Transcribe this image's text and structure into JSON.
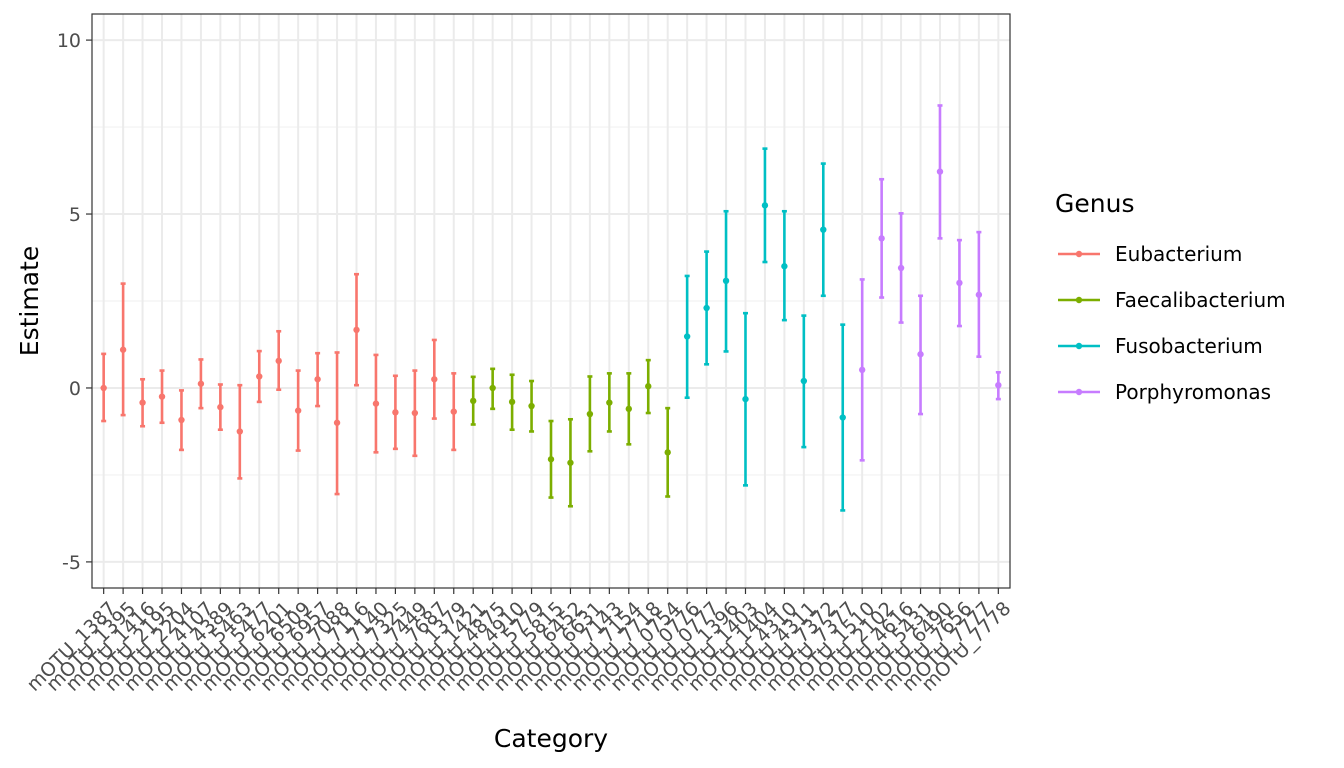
{
  "chart_data": {
    "type": "scatter",
    "subtype": "point-with-errorbars",
    "title": "",
    "xlabel": "Category",
    "ylabel": "Estimate",
    "ylim": [
      -5.75,
      10.75
    ],
    "yticks": [
      -5,
      0,
      5,
      10
    ],
    "grid": true,
    "legend": {
      "title": "Genus",
      "placement": "right"
    },
    "colors": {
      "Eubacterium": "#F8766D",
      "Faecalibacterium": "#7CAE00",
      "Fusobacterium": "#00BFC4",
      "Porphyromonas": "#C77CFF"
    },
    "genera": [
      "Eubacterium",
      "Faecalibacterium",
      "Fusobacterium",
      "Porphyromonas"
    ],
    "points": [
      {
        "category": "mOTU_1387",
        "genus": "Eubacterium",
        "estimate": 0.0,
        "lower": -0.95,
        "upper": 0.98
      },
      {
        "category": "mOTU_1395",
        "genus": "Eubacterium",
        "estimate": 1.1,
        "lower": -0.78,
        "upper": 3.0
      },
      {
        "category": "mOTU_1416",
        "genus": "Eubacterium",
        "estimate": -0.42,
        "lower": -1.1,
        "upper": 0.25
      },
      {
        "category": "mOTU_2195",
        "genus": "Eubacterium",
        "estimate": -0.25,
        "lower": -1.0,
        "upper": 0.5
      },
      {
        "category": "mOTU_2204",
        "genus": "Eubacterium",
        "estimate": -0.92,
        "lower": -1.78,
        "upper": -0.07
      },
      {
        "category": "mOTU_4107",
        "genus": "Eubacterium",
        "estimate": 0.12,
        "lower": -0.58,
        "upper": 0.82
      },
      {
        "category": "mOTU_4389",
        "genus": "Eubacterium",
        "estimate": -0.55,
        "lower": -1.2,
        "upper": 0.1
      },
      {
        "category": "mOTU_5463",
        "genus": "Eubacterium",
        "estimate": -1.25,
        "lower": -2.6,
        "upper": 0.08
      },
      {
        "category": "mOTU_5477",
        "genus": "Eubacterium",
        "estimate": 0.33,
        "lower": -0.4,
        "upper": 1.06
      },
      {
        "category": "mOTU_6201",
        "genus": "Eubacterium",
        "estimate": 0.78,
        "lower": -0.05,
        "upper": 1.63
      },
      {
        "category": "mOTU_6509",
        "genus": "Eubacterium",
        "estimate": -0.65,
        "lower": -1.8,
        "upper": 0.5
      },
      {
        "category": "mOTU_6957",
        "genus": "Eubacterium",
        "estimate": 0.25,
        "lower": -0.52,
        "upper": 1.0
      },
      {
        "category": "mOTU_7088",
        "genus": "Eubacterium",
        "estimate": -1.0,
        "lower": -3.05,
        "upper": 1.02
      },
      {
        "category": "mOTU_7116",
        "genus": "Eubacterium",
        "estimate": 1.67,
        "lower": 0.08,
        "upper": 3.27
      },
      {
        "category": "mOTU_7140",
        "genus": "Eubacterium",
        "estimate": -0.45,
        "lower": -1.85,
        "upper": 0.95
      },
      {
        "category": "mOTU_7325",
        "genus": "Eubacterium",
        "estimate": -0.7,
        "lower": -1.75,
        "upper": 0.35
      },
      {
        "category": "mOTU_7449",
        "genus": "Eubacterium",
        "estimate": -0.72,
        "lower": -1.95,
        "upper": 0.5
      },
      {
        "category": "mOTU_7687",
        "genus": "Eubacterium",
        "estimate": 0.25,
        "lower": -0.88,
        "upper": 1.38
      },
      {
        "category": "mOTU_1379",
        "genus": "Eubacterium",
        "estimate": -0.68,
        "lower": -1.78,
        "upper": 0.42
      },
      {
        "category": "mOTU_1421",
        "genus": "Faecalibacterium",
        "estimate": -0.37,
        "lower": -1.05,
        "upper": 0.32
      },
      {
        "category": "mOTU_4875",
        "genus": "Faecalibacterium",
        "estimate": 0.0,
        "lower": -0.6,
        "upper": 0.55
      },
      {
        "category": "mOTU_4910",
        "genus": "Faecalibacterium",
        "estimate": -0.4,
        "lower": -1.2,
        "upper": 0.38
      },
      {
        "category": "mOTU_5779",
        "genus": "Faecalibacterium",
        "estimate": -0.52,
        "lower": -1.25,
        "upper": 0.2
      },
      {
        "category": "mOTU_5815",
        "genus": "Faecalibacterium",
        "estimate": -2.05,
        "lower": -3.15,
        "upper": -0.95
      },
      {
        "category": "mOTU_6452",
        "genus": "Faecalibacterium",
        "estimate": -2.15,
        "lower": -3.4,
        "upper": -0.9
      },
      {
        "category": "mOTU_6631",
        "genus": "Faecalibacterium",
        "estimate": -0.75,
        "lower": -1.82,
        "upper": 0.33
      },
      {
        "category": "mOTU_7143",
        "genus": "Faecalibacterium",
        "estimate": -0.42,
        "lower": -1.25,
        "upper": 0.42
      },
      {
        "category": "mOTU_7154",
        "genus": "Faecalibacterium",
        "estimate": -0.6,
        "lower": -1.62,
        "upper": 0.42
      },
      {
        "category": "mOTU_7718",
        "genus": "Faecalibacterium",
        "estimate": 0.05,
        "lower": -0.72,
        "upper": 0.8
      },
      {
        "category": "mOTU_0754",
        "genus": "Faecalibacterium",
        "estimate": -1.85,
        "lower": -3.12,
        "upper": -0.58
      },
      {
        "category": "mOTU_0776",
        "genus": "Fusobacterium",
        "estimate": 1.48,
        "lower": -0.28,
        "upper": 3.22
      },
      {
        "category": "mOTU_0777",
        "genus": "Fusobacterium",
        "estimate": 2.3,
        "lower": 0.68,
        "upper": 3.92
      },
      {
        "category": "mOTU_1396",
        "genus": "Fusobacterium",
        "estimate": 3.08,
        "lower": 1.05,
        "upper": 5.08
      },
      {
        "category": "mOTU_1403",
        "genus": "Fusobacterium",
        "estimate": -0.32,
        "lower": -2.8,
        "upper": 2.15
      },
      {
        "category": "mOTU_1404",
        "genus": "Fusobacterium",
        "estimate": 5.25,
        "lower": 3.62,
        "upper": 6.88
      },
      {
        "category": "mOTU_4310",
        "genus": "Fusobacterium",
        "estimate": 3.5,
        "lower": 1.95,
        "upper": 5.08
      },
      {
        "category": "mOTU_4311",
        "genus": "Fusobacterium",
        "estimate": 0.2,
        "lower": -1.7,
        "upper": 2.08
      },
      {
        "category": "mOTU_7372",
        "genus": "Fusobacterium",
        "estimate": 4.55,
        "lower": 2.65,
        "upper": 6.45
      },
      {
        "category": "mOTU_7377",
        "genus": "Fusobacterium",
        "estimate": -0.85,
        "lower": -3.52,
        "upper": 1.82
      },
      {
        "category": "mOTU_1510",
        "genus": "Porphyromonas",
        "estimate": 0.52,
        "lower": -2.08,
        "upper": 3.12
      },
      {
        "category": "mOTU_2102",
        "genus": "Porphyromonas",
        "estimate": 4.3,
        "lower": 2.6,
        "upper": 6.0
      },
      {
        "category": "mOTU_4616",
        "genus": "Porphyromonas",
        "estimate": 3.45,
        "lower": 1.88,
        "upper": 5.02
      },
      {
        "category": "mOTU_5431",
        "genus": "Porphyromonas",
        "estimate": 0.97,
        "lower": -0.75,
        "upper": 2.65
      },
      {
        "category": "mOTU_6490",
        "genus": "Porphyromonas",
        "estimate": 6.22,
        "lower": 4.3,
        "upper": 8.12
      },
      {
        "category": "mOTU_7656",
        "genus": "Porphyromonas",
        "estimate": 3.02,
        "lower": 1.78,
        "upper": 4.25
      },
      {
        "category": "mOTU_7777",
        "genus": "Porphyromonas",
        "estimate": 2.68,
        "lower": 0.9,
        "upper": 4.48
      },
      {
        "category": "mOTU_7778",
        "genus": "Porphyromonas",
        "estimate": 0.08,
        "lower": -0.32,
        "upper": 0.45
      }
    ]
  }
}
